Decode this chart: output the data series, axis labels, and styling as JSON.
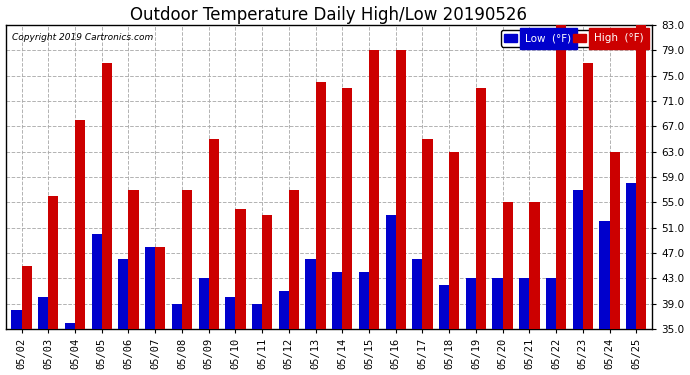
{
  "title": "Outdoor Temperature Daily High/Low 20190526",
  "copyright": "Copyright 2019 Cartronics.com",
  "legend_low": "Low  (°F)",
  "legend_high": "High  (°F)",
  "dates": [
    "05/02",
    "05/03",
    "05/04",
    "05/05",
    "05/06",
    "05/07",
    "05/08",
    "05/09",
    "05/10",
    "05/11",
    "05/12",
    "05/13",
    "05/14",
    "05/15",
    "05/16",
    "05/17",
    "05/18",
    "05/19",
    "05/20",
    "05/21",
    "05/22",
    "05/23",
    "05/24",
    "05/25"
  ],
  "lows": [
    38,
    40,
    36,
    50,
    46,
    48,
    39,
    43,
    40,
    39,
    41,
    46,
    44,
    44,
    53,
    46,
    42,
    43,
    43,
    43,
    43,
    57,
    52,
    58
  ],
  "highs": [
    45,
    56,
    68,
    77,
    57,
    48,
    57,
    65,
    54,
    53,
    57,
    74,
    73,
    79,
    79,
    65,
    63,
    73,
    55,
    55,
    83,
    77,
    63,
    83
  ],
  "low_color": "#0000cc",
  "high_color": "#cc0000",
  "bg_color": "#ffffff",
  "grid_color": "#aaaaaa",
  "ymin": 35.0,
  "ymax": 83.0,
  "yticks": [
    35.0,
    39.0,
    43.0,
    47.0,
    51.0,
    55.0,
    59.0,
    63.0,
    67.0,
    71.0,
    75.0,
    79.0,
    83.0
  ],
  "bar_width": 0.38,
  "title_fontsize": 12,
  "tick_fontsize": 7.5,
  "label_fontsize": 7.5
}
